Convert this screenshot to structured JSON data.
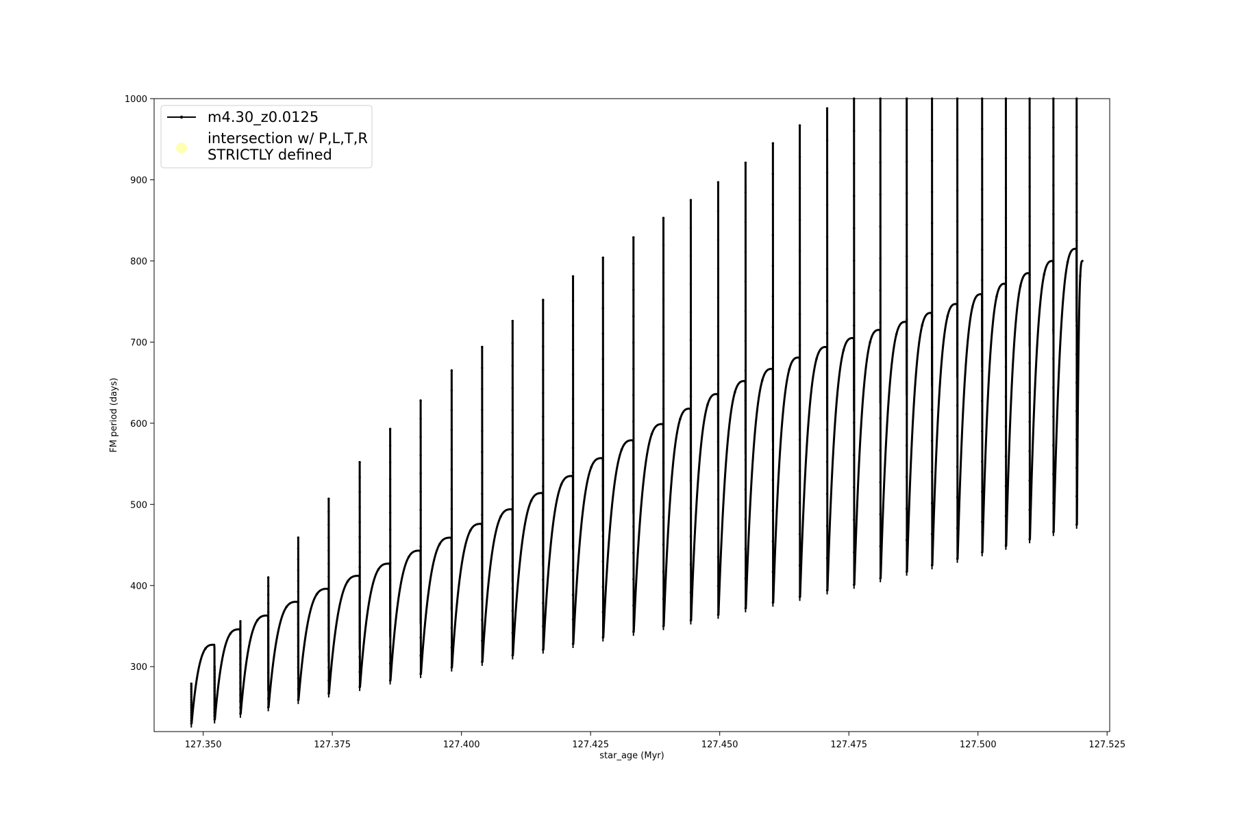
{
  "chart_data": {
    "type": "line",
    "xlabel": "star_age (Myr)",
    "ylabel": "FM period (days)",
    "xlim": [
      127.3405,
      127.5255
    ],
    "ylim": [
      220,
      1000
    ],
    "x_ticks": [
      127.35,
      127.375,
      127.4,
      127.425,
      127.45,
      127.475,
      127.5,
      127.525
    ],
    "x_tick_labels": [
      "127.350",
      "127.375",
      "127.400",
      "127.425",
      "127.450",
      "127.475",
      "127.500",
      "127.525"
    ],
    "y_ticks": [
      300,
      400,
      500,
      600,
      700,
      800,
      900,
      1000
    ],
    "y_tick_labels": [
      "300",
      "400",
      "500",
      "600",
      "700",
      "800",
      "900",
      "1000"
    ],
    "grid": false,
    "legend_position": "top-left",
    "series": [
      {
        "name": "m4.30_z0.0125",
        "color": "#000000",
        "marker": "dot",
        "description_type": "pulse-cycles",
        "cycles": [
          {
            "start": 127.3477,
            "end": 127.3522,
            "low": 230,
            "peak": 327,
            "spike": 279
          },
          {
            "start": 127.3522,
            "end": 127.3572,
            "low": 235,
            "peak": 346,
            "spike": 300
          },
          {
            "start": 127.3572,
            "end": 127.3626,
            "low": 242,
            "peak": 363,
            "spike": 356
          },
          {
            "start": 127.3626,
            "end": 127.3684,
            "low": 250,
            "peak": 380,
            "spike": 410
          },
          {
            "start": 127.3684,
            "end": 127.3743,
            "low": 259,
            "peak": 396,
            "spike": 459
          },
          {
            "start": 127.3743,
            "end": 127.3803,
            "low": 267,
            "peak": 412,
            "spike": 507
          },
          {
            "start": 127.3803,
            "end": 127.3862,
            "low": 275,
            "peak": 427,
            "spike": 552
          },
          {
            "start": 127.3862,
            "end": 127.3921,
            "low": 283,
            "peak": 443,
            "spike": 593
          },
          {
            "start": 127.3921,
            "end": 127.3981,
            "low": 291,
            "peak": 459,
            "spike": 628
          },
          {
            "start": 127.3981,
            "end": 127.404,
            "low": 299,
            "peak": 476,
            "spike": 665
          },
          {
            "start": 127.404,
            "end": 127.4099,
            "low": 306,
            "peak": 494,
            "spike": 694
          },
          {
            "start": 127.4099,
            "end": 127.4158,
            "low": 314,
            "peak": 514,
            "spike": 726
          },
          {
            "start": 127.4158,
            "end": 127.4216,
            "low": 321,
            "peak": 535,
            "spike": 752
          },
          {
            "start": 127.4216,
            "end": 127.4274,
            "low": 328,
            "peak": 557,
            "spike": 781
          },
          {
            "start": 127.4274,
            "end": 127.4333,
            "low": 336,
            "peak": 579,
            "spike": 804
          },
          {
            "start": 127.4333,
            "end": 127.4391,
            "low": 343,
            "peak": 599,
            "spike": 829
          },
          {
            "start": 127.4391,
            "end": 127.4444,
            "low": 350,
            "peak": 618,
            "spike": 853
          },
          {
            "start": 127.4444,
            "end": 127.4497,
            "low": 357,
            "peak": 636,
            "spike": 875
          },
          {
            "start": 127.4497,
            "end": 127.455,
            "low": 364,
            "peak": 652,
            "spike": 897
          },
          {
            "start": 127.455,
            "end": 127.4603,
            "low": 372,
            "peak": 667,
            "spike": 921
          },
          {
            "start": 127.4603,
            "end": 127.4655,
            "low": 379,
            "peak": 681,
            "spike": 945
          },
          {
            "start": 127.4655,
            "end": 127.4708,
            "low": 386,
            "peak": 694,
            "spike": 967
          },
          {
            "start": 127.4708,
            "end": 127.476,
            "low": 394,
            "peak": 705,
            "spike": 988
          },
          {
            "start": 127.476,
            "end": 127.4811,
            "low": 401,
            "peak": 715,
            "spike": 1000
          },
          {
            "start": 127.4811,
            "end": 127.4862,
            "low": 409,
            "peak": 725,
            "spike": 1000
          },
          {
            "start": 127.4862,
            "end": 127.4911,
            "low": 417,
            "peak": 736,
            "spike": 1000
          },
          {
            "start": 127.4911,
            "end": 127.496,
            "low": 425,
            "peak": 747,
            "spike": 1000
          },
          {
            "start": 127.496,
            "end": 127.5008,
            "low": 433,
            "peak": 759,
            "spike": 1000
          },
          {
            "start": 127.5008,
            "end": 127.5054,
            "low": 441,
            "peak": 772,
            "spike": 1000
          },
          {
            "start": 127.5054,
            "end": 127.51,
            "low": 449,
            "peak": 785,
            "spike": 1000
          },
          {
            "start": 127.51,
            "end": 127.5146,
            "low": 457,
            "peak": 800,
            "spike": 1000
          },
          {
            "start": 127.5146,
            "end": 127.5191,
            "low": 466,
            "peak": 815,
            "spike": 1000
          },
          {
            "start": 127.5191,
            "end": 127.5203,
            "low": 475,
            "peak": 800,
            "spike": 1000
          }
        ]
      },
      {
        "name": "intersection w/ P,L,T,R\nSTRICTLY defined",
        "color": "#ffffb3",
        "marker": "circle",
        "values": []
      }
    ],
    "legend": {
      "entries": [
        "m4.30_z0.0125",
        "intersection w/ P,L,T,R",
        "STRICTLY defined"
      ]
    }
  }
}
